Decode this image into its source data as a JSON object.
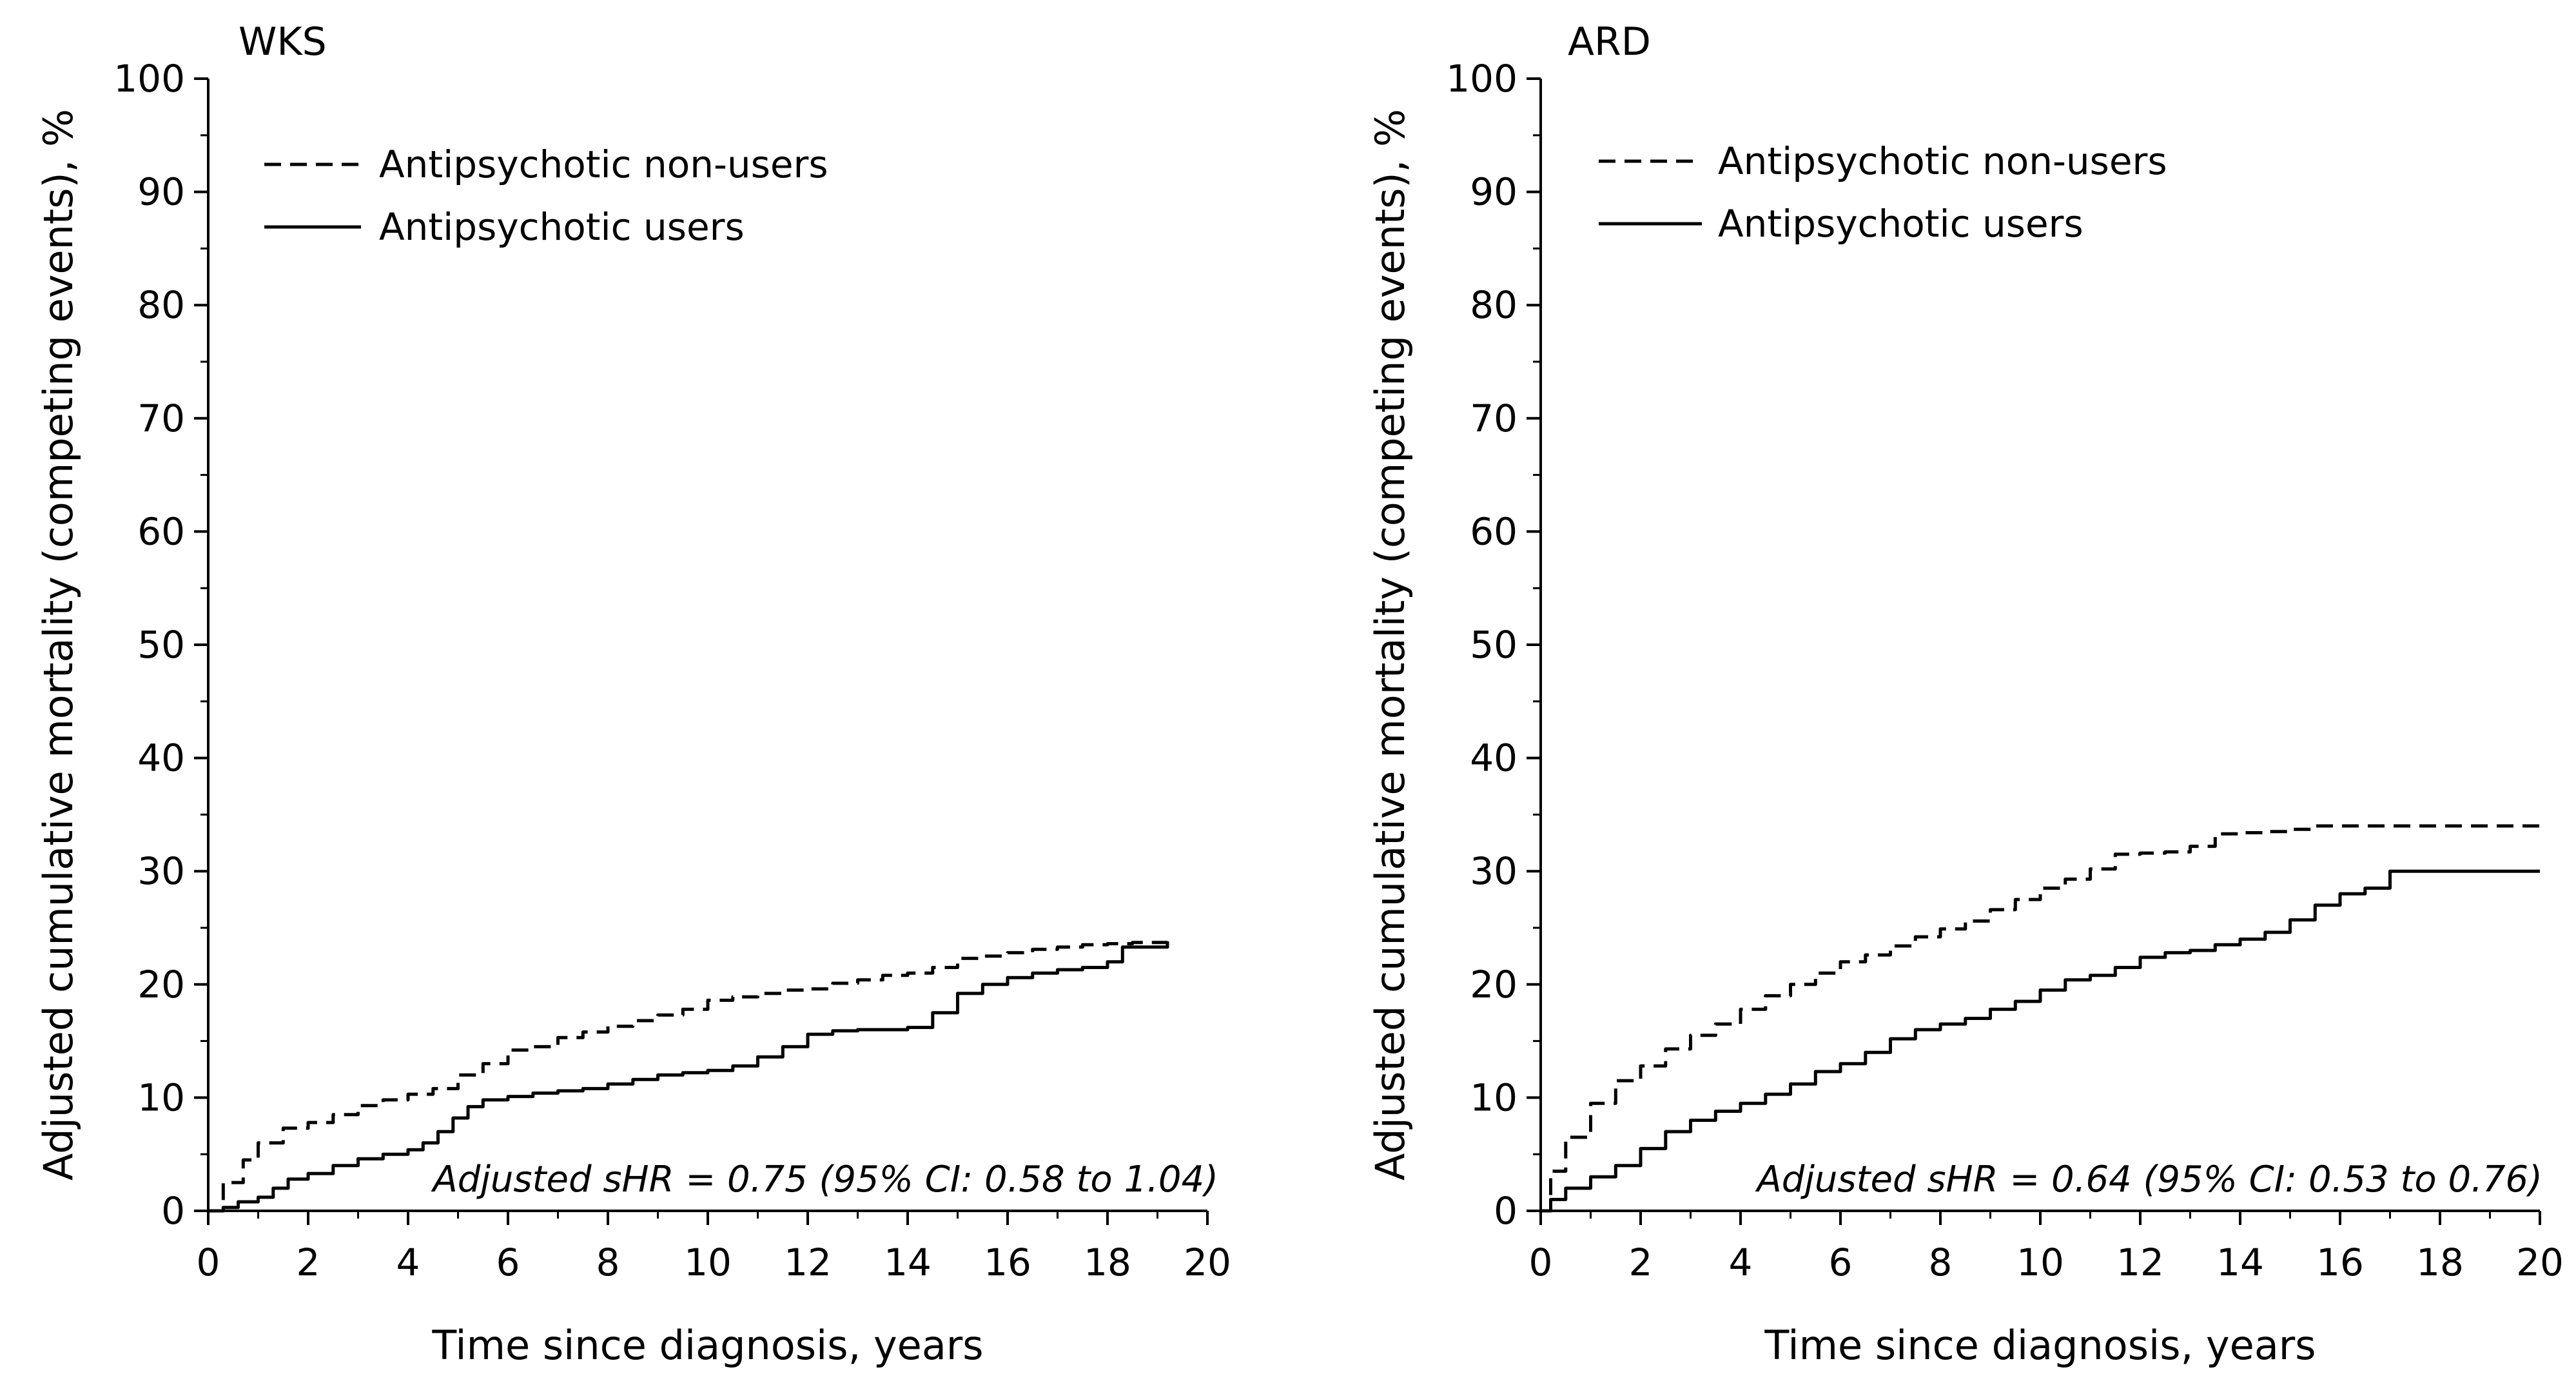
{
  "chart_data": [
    {
      "type": "line",
      "title": "WKS",
      "xlabel": "Time since diagnosis, years",
      "ylabel": "Adjusted cumulative mortality (competing events), %",
      "xlim": [
        0,
        20
      ],
      "ylim": [
        0,
        100
      ],
      "xticks": [
        0,
        2,
        4,
        6,
        8,
        10,
        12,
        14,
        16,
        18,
        20
      ],
      "yticks": [
        0,
        10,
        20,
        30,
        40,
        50,
        60,
        70,
        80,
        90,
        100
      ],
      "legend_position": "top-left",
      "annotation": "Adjusted sHR = 0.75 (95% CI: 0.58 to 1.04)",
      "series": [
        {
          "name": "Antipsychotic non-users",
          "style": "dashed",
          "x": [
            0,
            0.3,
            0.7,
            1.0,
            1.5,
            2.0,
            2.5,
            3.0,
            3.5,
            4.0,
            4.5,
            5.0,
            5.5,
            6.0,
            6.5,
            7.0,
            7.5,
            8.0,
            8.5,
            9.0,
            9.5,
            10.0,
            10.5,
            11.0,
            11.5,
            12.0,
            12.5,
            13.0,
            13.5,
            14.0,
            14.5,
            15.0,
            15.5,
            16.0,
            16.5,
            17.0,
            17.5,
            18.0,
            18.5,
            19.2
          ],
          "y": [
            0,
            2.5,
            4.5,
            6,
            7.3,
            7.8,
            8.5,
            9.3,
            9.8,
            10.3,
            10.8,
            12,
            13,
            14.2,
            14.5,
            15.3,
            15.8,
            16.3,
            16.8,
            17.3,
            17.8,
            18.6,
            18.9,
            19.2,
            19.5,
            19.6,
            20.1,
            20.4,
            20.8,
            21,
            21.5,
            22.3,
            22.5,
            22.8,
            23.1,
            23.3,
            23.5,
            23.6,
            23.7,
            23.9
          ]
        },
        {
          "name": "Antipsychotic users",
          "style": "solid",
          "x": [
            0,
            0.3,
            0.6,
            1.0,
            1.3,
            1.6,
            2.0,
            2.5,
            3.0,
            3.5,
            4.0,
            4.3,
            4.6,
            4.9,
            5.2,
            5.5,
            6.0,
            6.5,
            7.0,
            7.5,
            8.0,
            8.5,
            9.0,
            9.5,
            10.0,
            10.5,
            11.0,
            11.5,
            12.0,
            12.5,
            13.0,
            13.5,
            14.0,
            14.5,
            15.0,
            15.5,
            16.0,
            16.5,
            17.0,
            17.5,
            18.0,
            18.3,
            19.2
          ],
          "y": [
            0,
            0.3,
            0.8,
            1.2,
            2.0,
            2.8,
            3.3,
            4.0,
            4.6,
            5.0,
            5.4,
            6.0,
            7.0,
            8.2,
            9.2,
            9.8,
            10.1,
            10.4,
            10.6,
            10.8,
            11.2,
            11.6,
            12.0,
            12.2,
            12.4,
            12.8,
            13.6,
            14.5,
            15.6,
            15.9,
            16.0,
            16.0,
            16.2,
            17.5,
            19.2,
            20.0,
            20.6,
            21.0,
            21.3,
            21.5,
            22.0,
            23.3,
            23.8
          ]
        }
      ]
    },
    {
      "type": "line",
      "title": "ARD",
      "xlabel": "Time since diagnosis, years",
      "ylabel": "Adjusted cumulative mortality (competing events), %",
      "xlim": [
        0,
        20
      ],
      "ylim": [
        0,
        100
      ],
      "xticks": [
        0,
        2,
        4,
        6,
        8,
        10,
        12,
        14,
        16,
        18,
        20
      ],
      "yticks": [
        0,
        10,
        20,
        30,
        40,
        50,
        60,
        70,
        80,
        90,
        100
      ],
      "legend_position": "top-left",
      "annotation": "Adjusted sHR = 0.64 (95% CI: 0.53 to 0.76)",
      "series": [
        {
          "name": "Antipsychotic non-users",
          "style": "dashed",
          "x": [
            0,
            0.2,
            0.5,
            1.0,
            1.5,
            2.0,
            2.5,
            3.0,
            3.5,
            4.0,
            4.5,
            5.0,
            5.5,
            6.0,
            6.5,
            7.0,
            7.5,
            8.0,
            8.5,
            9.0,
            9.5,
            10.0,
            10.5,
            11.0,
            11.5,
            12.0,
            12.5,
            13.0,
            13.5,
            14.0,
            14.5,
            15.0,
            15.5,
            16.0,
            17.0,
            18.0,
            19.0,
            20.0
          ],
          "y": [
            0,
            3.5,
            6.5,
            9.5,
            11.5,
            12.8,
            14.3,
            15.5,
            16.5,
            17.8,
            19.0,
            20.0,
            21.0,
            22.0,
            22.6,
            23.4,
            24.2,
            24.9,
            25.6,
            26.6,
            27.5,
            28.5,
            29.3,
            30.2,
            31.5,
            31.6,
            31.7,
            32.2,
            33.3,
            33.4,
            33.5,
            33.7,
            34.0,
            34.0,
            34.0,
            34.0,
            34.0,
            34.0
          ]
        },
        {
          "name": "Antipsychotic users",
          "style": "solid",
          "x": [
            0,
            0.2,
            0.5,
            1.0,
            1.5,
            2.0,
            2.5,
            3.0,
            3.5,
            4.0,
            4.5,
            5.0,
            5.5,
            6.0,
            6.5,
            7.0,
            7.5,
            8.0,
            8.5,
            9.0,
            9.5,
            10.0,
            10.5,
            11.0,
            11.5,
            12.0,
            12.5,
            13.0,
            13.5,
            14.0,
            14.5,
            15.0,
            15.5,
            16.0,
            16.5,
            17.0,
            18.0,
            19.0,
            20.0
          ],
          "y": [
            0,
            1.0,
            2.0,
            3.0,
            4.0,
            5.5,
            7.0,
            8.0,
            8.8,
            9.5,
            10.3,
            11.2,
            12.3,
            13.0,
            14.0,
            15.2,
            16.0,
            16.5,
            17.0,
            17.8,
            18.5,
            19.5,
            20.4,
            20.8,
            21.5,
            22.4,
            22.8,
            23.0,
            23.5,
            24.0,
            24.6,
            25.7,
            27.0,
            28.0,
            28.5,
            30.0,
            30.0,
            30.0,
            30.0
          ]
        }
      ]
    }
  ]
}
